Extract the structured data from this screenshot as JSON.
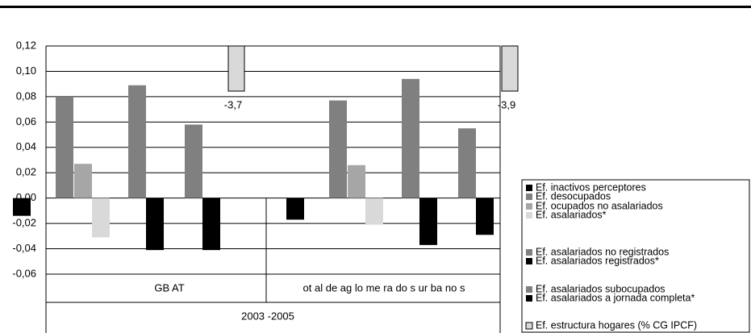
{
  "chart_data": {
    "type": "bar",
    "categories": [
      "GB AT",
      "ot al de ag lo me ra do s ur ba no s"
    ],
    "group_label": "2003 -2005",
    "ylim": [
      -0.06,
      0.12
    ],
    "yticks": [
      {
        "value": -0.06,
        "label": "-0,06"
      },
      {
        "value": -0.04,
        "label": "-0,04"
      },
      {
        "value": -0.02,
        "label": "-0,02"
      },
      {
        "value": 0,
        "label": "0,00"
      },
      {
        "value": 0.02,
        "label": "0,02"
      },
      {
        "value": 0.04,
        "label": "0,04"
      },
      {
        "value": 0.06,
        "label": "0,06"
      },
      {
        "value": 0.08,
        "label": "0,08"
      },
      {
        "value": 0.1,
        "label": "0,10"
      },
      {
        "value": 0.12,
        "label": "0,12"
      }
    ],
    "grid": true,
    "series": [
      {
        "name": "Ef. inactivos perceptores",
        "color": "#000000",
        "values": [
          -0.014,
          -0.017
        ]
      },
      {
        "name": "Ef. desocupados",
        "color": "#808080",
        "values": [
          0.08,
          0.077
        ]
      },
      {
        "name": "Ef. ocupados no asalariados",
        "color": "#a6a6a6",
        "values": [
          0.027,
          0.026
        ]
      },
      {
        "name": "Ef. asalariados*",
        "color": "#d9d9d9",
        "values": [
          -0.031,
          -0.021
        ]
      },
      {
        "name": "Ef. asalariados no registrados",
        "color": "#808080",
        "values": [
          0.089,
          0.094
        ]
      },
      {
        "name": "Ef. asalariados registrados*",
        "color": "#000000",
        "values": [
          -0.041,
          -0.037
        ]
      },
      {
        "name": "Ef. asalariados subocupados",
        "color": "#808080",
        "values": [
          0.058,
          0.055
        ]
      },
      {
        "name": "Ef. asalariados a jornada completa*",
        "color": "#000000",
        "values": [
          -0.041,
          -0.029
        ]
      },
      {
        "name": "Ef. estructura hogares (% CG IPCF)",
        "color": "#d9d9d9",
        "values": [
          -3.7,
          -3.9
        ],
        "value_labels": [
          "-3,7",
          "-3,9"
        ],
        "off_scale": true
      }
    ]
  }
}
